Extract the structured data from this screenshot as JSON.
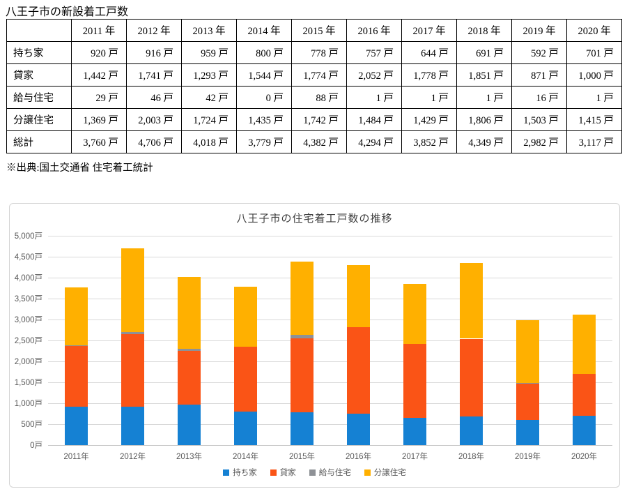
{
  "page": {
    "title": "八王子市の新設着工戸数",
    "source_note": "※出典:国土交通省 住宅着工統計"
  },
  "table": {
    "corner": "",
    "columns": [
      "2011 年",
      "2012 年",
      "2013 年",
      "2014 年",
      "2015 年",
      "2016 年",
      "2017 年",
      "2018 年",
      "2019 年",
      "2020 年"
    ],
    "rows": [
      {
        "label": "持ち家",
        "values": [
          "920 戸",
          "916 戸",
          "959 戸",
          "800 戸",
          "778 戸",
          "757 戸",
          "644 戸",
          "691 戸",
          "592 戸",
          "701 戸"
        ]
      },
      {
        "label": "貸家",
        "values": [
          "1,442 戸",
          "1,741 戸",
          "1,293 戸",
          "1,544 戸",
          "1,774 戸",
          "2,052 戸",
          "1,778 戸",
          "1,851 戸",
          "871 戸",
          "1,000 戸"
        ]
      },
      {
        "label": "給与住宅",
        "values": [
          "29 戸",
          "46 戸",
          "42 戸",
          "0 戸",
          "88 戸",
          "1 戸",
          "1 戸",
          "1 戸",
          "16 戸",
          "1 戸"
        ]
      },
      {
        "label": "分譲住宅",
        "values": [
          "1,369 戸",
          "2,003 戸",
          "1,724 戸",
          "1,435 戸",
          "1,742 戸",
          "1,484 戸",
          "1,429 戸",
          "1,806 戸",
          "1,503 戸",
          "1,415 戸"
        ]
      },
      {
        "label": "総計",
        "values": [
          "3,760 戸",
          "4,706 戸",
          "4,018 戸",
          "3,779 戸",
          "4,382 戸",
          "4,294 戸",
          "3,852 戸",
          "4,349 戸",
          "2,982 戸",
          "3,117 戸"
        ]
      }
    ]
  },
  "chart_data": {
    "type": "bar",
    "stacked": true,
    "title": "八王子市の住宅着工戸数の推移",
    "categories": [
      "2011年",
      "2012年",
      "2013年",
      "2014年",
      "2015年",
      "2016年",
      "2017年",
      "2018年",
      "2019年",
      "2020年"
    ],
    "series": [
      {
        "name": "持ち家",
        "color": "#1581D3",
        "values": [
          920,
          916,
          959,
          800,
          778,
          757,
          644,
          691,
          592,
          701
        ]
      },
      {
        "name": "貸家",
        "color": "#FA5416",
        "values": [
          1442,
          1741,
          1293,
          1544,
          1774,
          2052,
          1778,
          1851,
          871,
          1000
        ]
      },
      {
        "name": "給与住宅",
        "color": "#8E9196",
        "values": [
          29,
          46,
          42,
          0,
          88,
          1,
          1,
          1,
          16,
          1
        ]
      },
      {
        "name": "分譲住宅",
        "color": "#FFB000",
        "values": [
          1369,
          2003,
          1724,
          1435,
          1742,
          1484,
          1429,
          1806,
          1503,
          1415
        ]
      }
    ],
    "xlabel": "",
    "ylabel": "",
    "ylim": [
      0,
      5000
    ],
    "ytick_step": 500,
    "ytick_labels": [
      "0戸",
      "500戸",
      "1,000戸",
      "1,500戸",
      "2,000戸",
      "2,500戸",
      "3,000戸",
      "3,500戸",
      "4,000戸",
      "4,500戸",
      "5,000戸"
    ],
    "grid": true,
    "legend_position": "bottom",
    "colors": {
      "grid": "#D9D9D9",
      "axis_text": "#595959",
      "title_text": "#3F3F3F"
    }
  }
}
